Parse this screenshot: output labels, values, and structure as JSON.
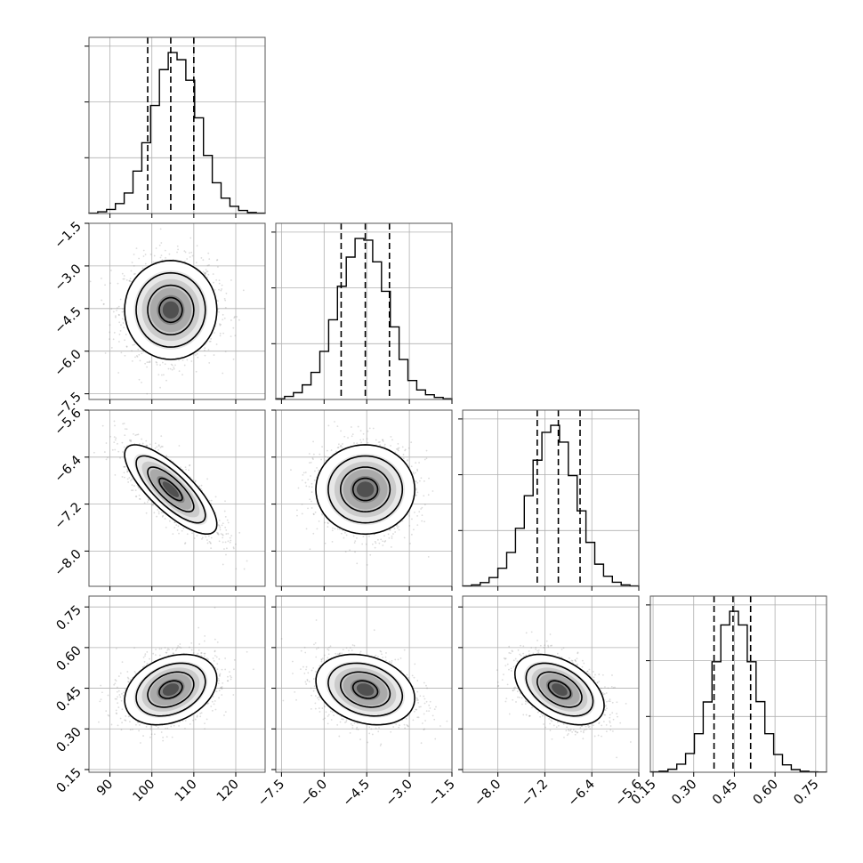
{
  "chart_data": {
    "type": "corner",
    "parameters": [
      {
        "range": [
          85,
          127
        ],
        "ticks": [
          90,
          100,
          110,
          120
        ],
        "tick_labels": [
          "90",
          "100",
          "110",
          "120"
        ],
        "mean": 104.5,
        "std": 5.5,
        "quantiles": [
          99,
          104.5,
          110
        ]
      },
      {
        "range": [
          -7.7,
          -1.5
        ],
        "ticks": [
          -7.5,
          -6.0,
          -4.5,
          -3.0,
          -1.5
        ],
        "tick_labels": [
          "−7.5",
          "−6.0",
          "−4.5",
          "−3.0",
          "−1.5"
        ],
        "mean": -4.55,
        "std": 0.87,
        "quantiles": [
          -5.4,
          -4.55,
          -3.7
        ]
      },
      {
        "range": [
          -8.6,
          -5.6
        ],
        "ticks": [
          -8.0,
          -7.2,
          -6.4,
          -5.6
        ],
        "tick_labels": [
          "−8.0",
          "−7.2",
          "−6.4",
          "−5.6"
        ],
        "mean": -6.95,
        "std": 0.38,
        "quantiles": [
          -7.33,
          -6.97,
          -6.6
        ]
      },
      {
        "range": [
          0.14,
          0.79
        ],
        "ticks": [
          0.15,
          0.3,
          0.45,
          0.6,
          0.75
        ],
        "tick_labels": [
          "0.15",
          "0.30",
          "0.45",
          "0.60",
          "0.75"
        ],
        "mean": 0.445,
        "std": 0.065,
        "quantiles": [
          0.375,
          0.445,
          0.51
        ]
      }
    ],
    "histograms": [
      {
        "param": 0,
        "bin_edges": [
          85,
          87.1,
          89.2,
          91.3,
          93.4,
          95.5,
          97.6,
          99.7,
          101.8,
          103.9,
          106,
          108.1,
          110.2,
          112.3,
          114.4,
          116.5,
          118.6,
          120.7,
          122.8,
          124.9,
          127
        ],
        "counts": [
          2,
          10,
          24,
          58,
          120,
          248,
          414,
          632,
          842,
          942,
          900,
          780,
          560,
          340,
          180,
          90,
          42,
          18,
          6,
          2
        ]
      },
      {
        "param": 1,
        "bin_edges": [
          -7.7,
          -7.39,
          -7.08,
          -6.77,
          -6.46,
          -6.15,
          -5.84,
          -5.53,
          -5.22,
          -4.91,
          -4.6,
          -4.29,
          -3.98,
          -3.67,
          -3.36,
          -3.05,
          -2.74,
          -2.43,
          -2.12,
          -1.81,
          -1.5
        ],
        "counts": [
          4,
          18,
          40,
          86,
          160,
          284,
          470,
          668,
          840,
          950,
          940,
          812,
          638,
          428,
          236,
          112,
          56,
          28,
          12,
          4
        ]
      },
      {
        "param": 2,
        "bin_edges": [
          -8.6,
          -8.45,
          -8.3,
          -8.15,
          -8.0,
          -7.85,
          -7.7,
          -7.55,
          -7.4,
          -7.25,
          -7.1,
          -6.95,
          -6.8,
          -6.65,
          -6.5,
          -6.35,
          -6.2,
          -6.05,
          -5.9,
          -5.75,
          -5.6
        ],
        "counts": [
          2,
          8,
          22,
          52,
          108,
          202,
          346,
          540,
          752,
          918,
          960,
          860,
          660,
          450,
          262,
          132,
          60,
          24,
          8,
          2
        ]
      },
      {
        "param": 3,
        "bin_edges": [
          0.14,
          0.1725,
          0.205,
          0.2375,
          0.27,
          0.3025,
          0.335,
          0.3675,
          0.4,
          0.4325,
          0.465,
          0.4975,
          0.53,
          0.5625,
          0.595,
          0.6275,
          0.66,
          0.6925,
          0.725,
          0.7575,
          0.79
        ],
        "counts": [
          2,
          6,
          18,
          48,
          112,
          230,
          420,
          660,
          880,
          962,
          880,
          660,
          422,
          230,
          106,
          44,
          16,
          6,
          2,
          1
        ]
      }
    ],
    "pairs": [
      {
        "x_param": 0,
        "y_param": 1,
        "correlation": 0.0
      },
      {
        "x_param": 0,
        "y_param": 2,
        "correlation": -0.78
      },
      {
        "x_param": 1,
        "y_param": 2,
        "correlation": 0.0
      },
      {
        "x_param": 0,
        "y_param": 3,
        "correlation": 0.3
      },
      {
        "x_param": 1,
        "y_param": 3,
        "correlation": -0.25
      },
      {
        "x_param": 2,
        "y_param": 3,
        "correlation": -0.45
      }
    ],
    "contour_sigma_levels": [
      0.5,
      1.0,
      1.5,
      2.0
    ],
    "grid": true,
    "colors": {
      "line": "#000000",
      "grid": "#b0b0b0",
      "points": "#808080",
      "density": "#000000"
    }
  }
}
